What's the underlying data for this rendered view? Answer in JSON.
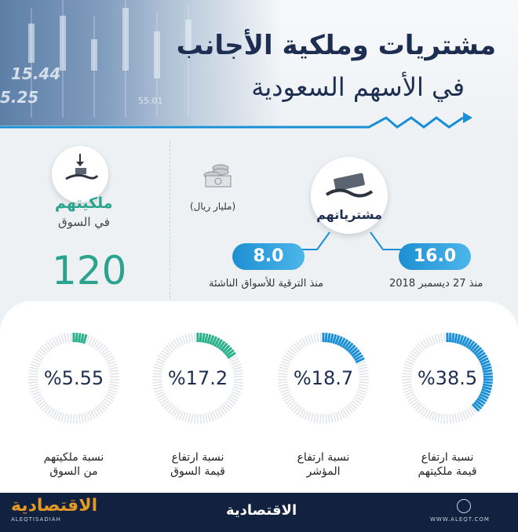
{
  "header": {
    "title_line1": "مشتريات وملكية الأجانب",
    "title_line2": "في الأسهم السعودية",
    "ticker_values": [
      "15.44",
      "5.25",
      "55.01"
    ]
  },
  "purchases": {
    "label": "مشترياتهم",
    "unit": "(مليار ريال)",
    "since_date_value": "16.0",
    "since_date_caption": "منذ 27 ديسمبر 2018",
    "since_upgrade_value": "8.0",
    "since_upgrade_caption": "منذ الترقية للأسواق الناشئة"
  },
  "ownership": {
    "title": "ملكيتهم",
    "subtitle": "في السوق",
    "value": "120"
  },
  "gauges": [
    {
      "value_text": "%38.5",
      "pct": 38.5,
      "line1": "نسبة ارتفاع",
      "line2": "قيمة ملكيتهم",
      "color": "#1a8fd6"
    },
    {
      "value_text": "%18.7",
      "pct": 18.7,
      "line1": "نسبة ارتفاع",
      "line2": "المؤشر",
      "color": "#1a8fd6"
    },
    {
      "value_text": "%17.2",
      "pct": 17.2,
      "line1": "نسبة ارتفاع",
      "line2": "قيمة السوق",
      "color": "#27b08a"
    },
    {
      "value_text": "%5.55",
      "pct": 5.55,
      "line1": "نسبة ملكيتهم",
      "line2": "من السوق",
      "color": "#27b08a"
    }
  ],
  "footer": {
    "logo_left": "الاقتصادية",
    "logo_left_sub": "ALEQTISADIAH",
    "logo_center": "الاقتصادية",
    "url": "WWW.ALEQT.COM"
  },
  "colors": {
    "navy": "#1d2e52",
    "blue": "#1a8fd6",
    "green": "#27b08a",
    "footer_bg": "#11213f"
  }
}
